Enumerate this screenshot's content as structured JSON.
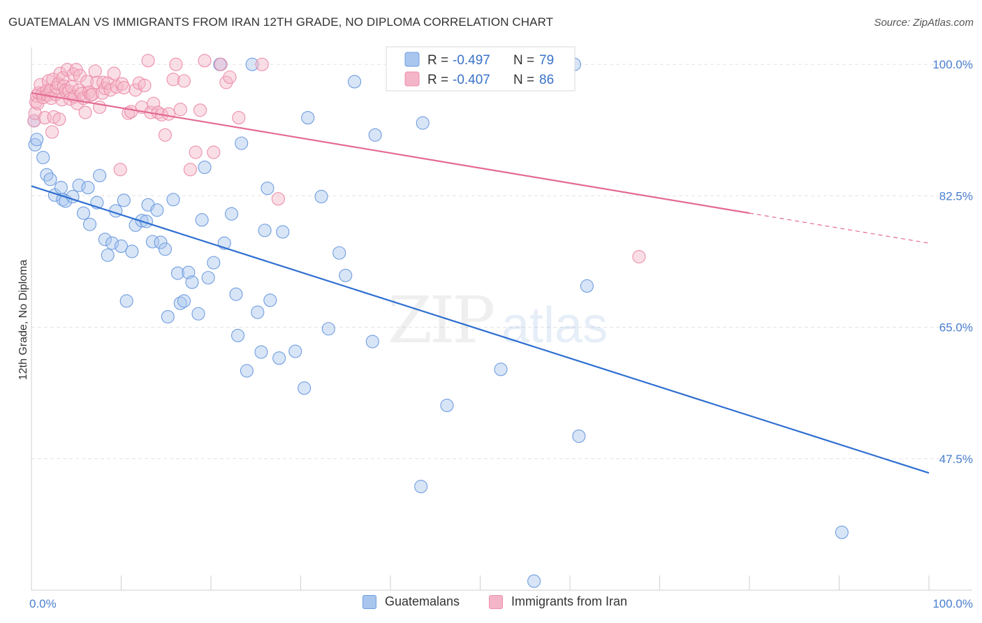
{
  "header": {
    "title": "GUATEMALAN VS IMMIGRANTS FROM IRAN 12TH GRADE, NO DIPLOMA CORRELATION CHART",
    "source": "Source: ZipAtlas.com"
  },
  "watermark": {
    "zip": "ZIP",
    "atlas": "atlas"
  },
  "colors": {
    "blue_fill": "#a9c6ee",
    "blue_stroke": "#6f9de0",
    "blue_line": "#2f6fd1",
    "pink_fill": "#f5b5c8",
    "pink_stroke": "#ec8fab",
    "pink_line": "#e46a93",
    "tick_text": "#4a7fcf",
    "grid": "#e3e3e3"
  },
  "legend": {
    "rows": [
      {
        "r_label": "R = ",
        "r_value": "-0.497",
        "n_label": "N = ",
        "n_value": "79"
      },
      {
        "r_label": "R = ",
        "r_value": "-0.407",
        "n_label": "N = ",
        "n_value": "86"
      }
    ]
  },
  "bottom_legend": {
    "items": [
      {
        "label": "Guatemalans"
      },
      {
        "label": "Immigrants from Iran"
      }
    ]
  },
  "chart_data": {
    "type": "scatter",
    "title": "GUATEMALAN VS IMMIGRANTS FROM IRAN 12TH GRADE, NO DIPLOMA CORRELATION CHART",
    "xlabel": "",
    "ylabel": "12th Grade, No Diploma",
    "xlim": [
      0,
      100
    ],
    "ylim": [
      30,
      101.6
    ],
    "x_tick_labels": [
      "0.0%",
      "100.0%"
    ],
    "y_ticks": [
      47.5,
      65.0,
      82.5,
      100.0
    ],
    "y_tick_labels": [
      "47.5%",
      "65.0%",
      "82.5%",
      "100.0%"
    ],
    "grid": true,
    "legend_placement": "top-center",
    "series": [
      {
        "name": "Guatemalans",
        "trend": {
          "x": [
            0,
            100
          ],
          "y": [
            83.8,
            45.6
          ]
        },
        "points": [
          [
            0.3,
            92.5
          ],
          [
            0.4,
            89.3
          ],
          [
            0.6,
            90.0
          ],
          [
            1.3,
            87.6
          ],
          [
            1.7,
            85.3
          ],
          [
            2.1,
            84.7
          ],
          [
            2.6,
            82.6
          ],
          [
            3.3,
            83.6
          ],
          [
            3.5,
            82.0
          ],
          [
            3.8,
            81.8
          ],
          [
            4.6,
            82.4
          ],
          [
            5.3,
            83.9
          ],
          [
            5.8,
            80.2
          ],
          [
            6.3,
            83.6
          ],
          [
            6.5,
            78.7
          ],
          [
            7.3,
            81.6
          ],
          [
            7.6,
            85.2
          ],
          [
            8.2,
            76.7
          ],
          [
            8.5,
            74.6
          ],
          [
            9.0,
            76.2
          ],
          [
            9.4,
            80.5
          ],
          [
            10.0,
            75.8
          ],
          [
            10.3,
            81.9
          ],
          [
            10.6,
            68.5
          ],
          [
            11.2,
            75.1
          ],
          [
            11.6,
            78.6
          ],
          [
            12.3,
            79.2
          ],
          [
            12.8,
            79.1
          ],
          [
            13.0,
            81.3
          ],
          [
            13.5,
            76.4
          ],
          [
            14.0,
            80.6
          ],
          [
            14.4,
            76.3
          ],
          [
            14.9,
            75.4
          ],
          [
            15.2,
            66.4
          ],
          [
            15.8,
            82.0
          ],
          [
            16.3,
            72.2
          ],
          [
            16.6,
            68.2
          ],
          [
            17.0,
            68.5
          ],
          [
            17.5,
            72.3
          ],
          [
            17.9,
            71.0
          ],
          [
            18.6,
            66.8
          ],
          [
            19.0,
            79.3
          ],
          [
            19.3,
            86.3
          ],
          [
            19.7,
            71.6
          ],
          [
            20.3,
            73.6
          ],
          [
            21.0,
            100.0
          ],
          [
            21.5,
            76.2
          ],
          [
            22.3,
            80.1
          ],
          [
            22.8,
            69.4
          ],
          [
            23.0,
            63.9
          ],
          [
            23.4,
            89.5
          ],
          [
            24.0,
            59.2
          ],
          [
            24.6,
            100.0
          ],
          [
            25.2,
            67.0
          ],
          [
            25.6,
            61.7
          ],
          [
            26.0,
            77.9
          ],
          [
            26.3,
            83.5
          ],
          [
            26.6,
            68.6
          ],
          [
            27.6,
            60.9
          ],
          [
            28.0,
            77.7
          ],
          [
            29.4,
            61.8
          ],
          [
            30.4,
            56.9
          ],
          [
            30.8,
            92.9
          ],
          [
            32.3,
            82.4
          ],
          [
            33.1,
            64.8
          ],
          [
            34.3,
            74.9
          ],
          [
            35.0,
            71.9
          ],
          [
            36.0,
            97.7
          ],
          [
            38.0,
            63.1
          ],
          [
            38.3,
            90.6
          ],
          [
            43.4,
            43.8
          ],
          [
            43.6,
            92.2
          ],
          [
            46.3,
            54.6
          ],
          [
            52.3,
            59.4
          ],
          [
            56.0,
            31.2
          ],
          [
            60.5,
            100.0
          ],
          [
            61.0,
            50.5
          ],
          [
            61.9,
            70.5
          ],
          [
            90.3,
            37.7
          ]
        ]
      },
      {
        "name": "Immigrants from Iran",
        "trend": {
          "x": [
            0,
            80
          ],
          "y": [
            96.2,
            80.2
          ],
          "dashed_to": [
            100,
            76.2
          ]
        },
        "points": [
          [
            0.3,
            92.5
          ],
          [
            0.4,
            93.5
          ],
          [
            0.5,
            95.0
          ],
          [
            0.6,
            95.8
          ],
          [
            0.7,
            94.8
          ],
          [
            0.8,
            96.2
          ],
          [
            1.0,
            97.3
          ],
          [
            1.2,
            96.1
          ],
          [
            1.3,
            95.6
          ],
          [
            1.5,
            92.9
          ],
          [
            1.7,
            96.5
          ],
          [
            1.8,
            95.9
          ],
          [
            1.9,
            97.8
          ],
          [
            2.1,
            96.5
          ],
          [
            2.2,
            95.5
          ],
          [
            2.3,
            91.0
          ],
          [
            2.4,
            98.0
          ],
          [
            2.5,
            93.0
          ],
          [
            2.7,
            96.0
          ],
          [
            2.8,
            96.9
          ],
          [
            3.0,
            97.4
          ],
          [
            3.1,
            92.7
          ],
          [
            3.2,
            98.8
          ],
          [
            3.4,
            95.3
          ],
          [
            3.5,
            98.2
          ],
          [
            3.6,
            97.1
          ],
          [
            3.8,
            96.5
          ],
          [
            4.0,
            99.3
          ],
          [
            4.2,
            96.4
          ],
          [
            4.3,
            95.4
          ],
          [
            4.5,
            97.0
          ],
          [
            4.7,
            98.7
          ],
          [
            4.8,
            95.7
          ],
          [
            5.0,
            99.3
          ],
          [
            5.1,
            94.8
          ],
          [
            5.3,
            96.6
          ],
          [
            5.4,
            98.5
          ],
          [
            5.6,
            96.1
          ],
          [
            5.8,
            95.5
          ],
          [
            6.0,
            93.6
          ],
          [
            6.2,
            97.7
          ],
          [
            6.4,
            96.3
          ],
          [
            6.6,
            95.9
          ],
          [
            6.8,
            96.0
          ],
          [
            7.1,
            99.1
          ],
          [
            7.3,
            97.6
          ],
          [
            7.6,
            94.3
          ],
          [
            7.9,
            96.2
          ],
          [
            8.0,
            97.6
          ],
          [
            8.2,
            96.8
          ],
          [
            8.5,
            97.5
          ],
          [
            8.8,
            96.6
          ],
          [
            9.2,
            98.8
          ],
          [
            9.5,
            97.0
          ],
          [
            9.9,
            86.0
          ],
          [
            10.1,
            97.4
          ],
          [
            10.3,
            96.9
          ],
          [
            10.8,
            93.5
          ],
          [
            11.1,
            93.7
          ],
          [
            11.6,
            96.6
          ],
          [
            12.0,
            97.5
          ],
          [
            12.3,
            94.3
          ],
          [
            12.6,
            97.2
          ],
          [
            13.0,
            100.5
          ],
          [
            13.3,
            93.6
          ],
          [
            13.6,
            94.8
          ],
          [
            14.1,
            93.6
          ],
          [
            14.5,
            93.3
          ],
          [
            14.9,
            90.6
          ],
          [
            15.3,
            93.4
          ],
          [
            15.8,
            98.0
          ],
          [
            16.1,
            100.0
          ],
          [
            16.6,
            94.0
          ],
          [
            17.0,
            97.8
          ],
          [
            17.7,
            86.0
          ],
          [
            18.3,
            88.3
          ],
          [
            18.8,
            93.9
          ],
          [
            19.3,
            100.5
          ],
          [
            20.3,
            88.3
          ],
          [
            21.1,
            100.0
          ],
          [
            21.7,
            97.6
          ],
          [
            22.1,
            98.3
          ],
          [
            23.1,
            92.9
          ],
          [
            25.7,
            100.0
          ],
          [
            27.5,
            82.1
          ],
          [
            67.7,
            74.4
          ]
        ]
      }
    ]
  }
}
